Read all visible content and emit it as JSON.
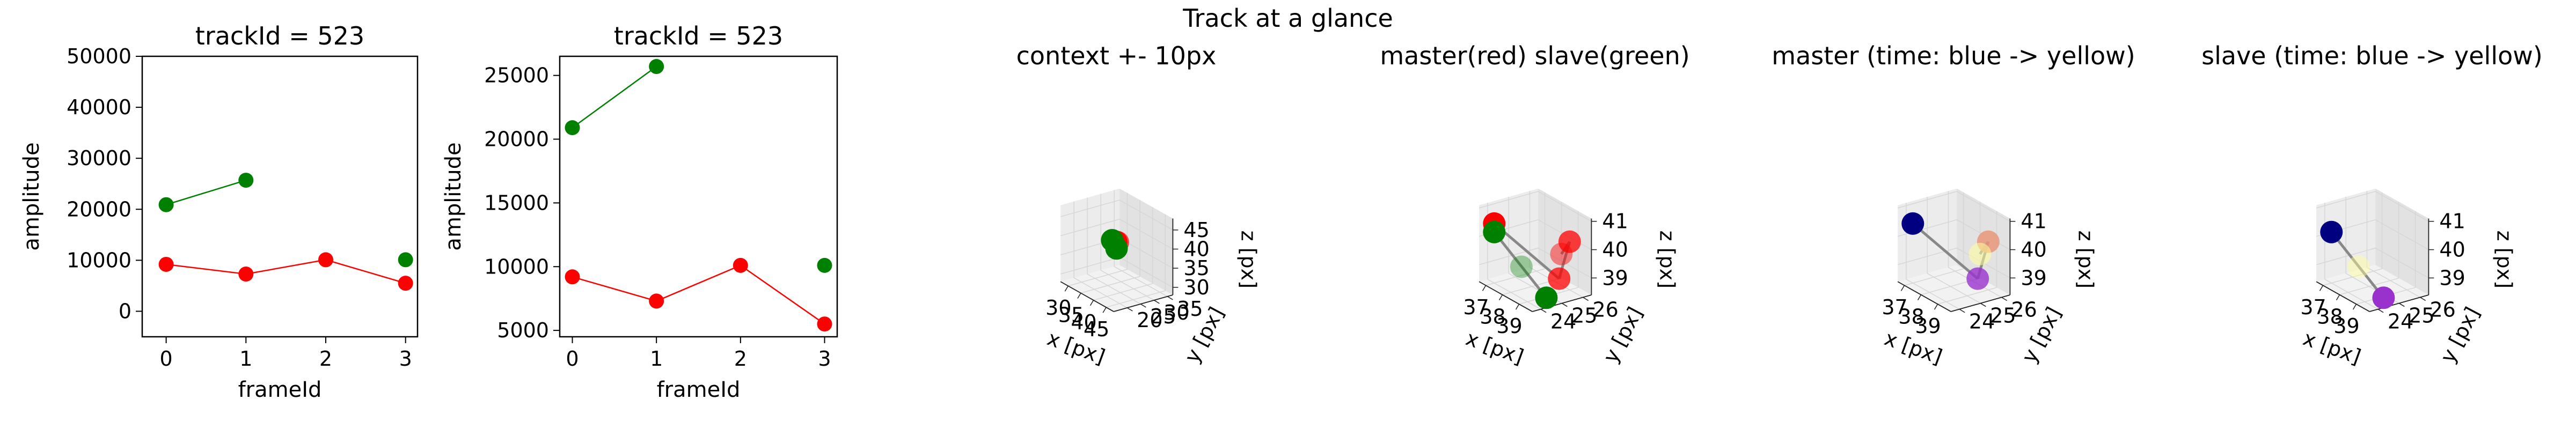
{
  "suptitle": "Track at a glance",
  "chart_data": [
    {
      "type": "line",
      "title": "trackId = 523",
      "xlabel": "frameId",
      "ylabel": "amplitude",
      "xlim": [
        -0.3,
        3.15
      ],
      "ylim": [
        -5000,
        50000
      ],
      "xticks": [
        "0",
        "1",
        "2",
        "3"
      ],
      "yticks": [
        "0",
        "10000",
        "20000",
        "30000",
        "40000",
        "50000"
      ],
      "ytick_values": [
        0,
        10000,
        20000,
        30000,
        40000,
        50000
      ],
      "series": [
        {
          "color": "#008000",
          "x": [
            0,
            1
          ],
          "y": [
            20900,
            25700
          ]
        },
        {
          "color": "#008000",
          "x": [
            3
          ],
          "y": [
            10100
          ]
        },
        {
          "color": "#ff0000",
          "x": [
            0,
            1,
            2,
            3
          ],
          "y": [
            9200,
            7300,
            10100,
            5500
          ]
        }
      ]
    },
    {
      "type": "line",
      "title": "trackId = 523",
      "xlabel": "frameId",
      "ylabel": "amplitude",
      "xlim": [
        -0.15,
        3.15
      ],
      "ylim": [
        4500,
        26500
      ],
      "xticks": [
        "0",
        "1",
        "2",
        "3"
      ],
      "yticks": [
        "5000",
        "10000",
        "15000",
        "20000",
        "25000"
      ],
      "ytick_values": [
        5000,
        10000,
        15000,
        20000,
        25000
      ],
      "series": [
        {
          "color": "#008000",
          "x": [
            0,
            1
          ],
          "y": [
            20900,
            25700
          ]
        },
        {
          "color": "#008000",
          "x": [
            3
          ],
          "y": [
            10100
          ]
        },
        {
          "color": "#ff0000",
          "x": [
            0,
            1,
            2,
            3
          ],
          "y": [
            9200,
            7300,
            10100,
            5500
          ]
        }
      ]
    },
    {
      "type": "scatter",
      "title": "context +- 10px",
      "xlabel": "x [px]",
      "ylabel": "y [px]",
      "zlabel": "z [px]",
      "xlim": [
        27,
        48
      ],
      "ylim": [
        15,
        37
      ],
      "zlim": [
        28,
        48
      ],
      "xticks": [
        "30",
        "35",
        "40",
        "45"
      ],
      "xtick_values": [
        30,
        35,
        40,
        45
      ],
      "yticks": [
        "20",
        "25",
        "30",
        "35"
      ],
      "ytick_values": [
        20,
        25,
        30,
        35
      ],
      "zticks": [
        "30",
        "35",
        "40",
        "45"
      ],
      "ztick_values": [
        30,
        35,
        40,
        45
      ],
      "points": [
        {
          "x": 38.5,
          "y": 25.5,
          "z": 40.5,
          "color": "#ff0000",
          "alpha": 0.7
        },
        {
          "x": 37.5,
          "y": 25.8,
          "z": 40.2,
          "color": "#ff0000",
          "alpha": 1
        },
        {
          "x": 37.3,
          "y": 24.5,
          "z": 40.8,
          "color": "#008000",
          "alpha": 1
        },
        {
          "x": 38.5,
          "y": 25.0,
          "z": 39.0,
          "color": "#008000",
          "alpha": 1
        }
      ],
      "lines": []
    },
    {
      "type": "scatter",
      "title": "master(red) slave(green)",
      "xlabel": "x [px]",
      "ylabel": "y [px]",
      "zlabel": "z [px]",
      "xlim": [
        36.6,
        39.8
      ],
      "ylim": [
        23.6,
        26.4
      ],
      "zlim": [
        38.4,
        41.1
      ],
      "xticks": [
        "37",
        "38",
        "39"
      ],
      "xtick_values": [
        37,
        38,
        39
      ],
      "yticks": [
        "24",
        "25",
        "26"
      ],
      "ytick_values": [
        24,
        25,
        26
      ],
      "zticks": [
        "39",
        "40",
        "41"
      ],
      "ztick_values": [
        39,
        40,
        41
      ],
      "points": [
        {
          "x": 37.0,
          "y": 24.0,
          "z": 40.5,
          "color": "#ff0000",
          "alpha": 1
        },
        {
          "x": 38.5,
          "y": 26.0,
          "z": 39.5,
          "color": "#ff0000",
          "alpha": 0.45
        },
        {
          "x": 39.0,
          "y": 25.5,
          "z": 38.9,
          "color": "#ff0000",
          "alpha": 0.75
        },
        {
          "x": 39.0,
          "y": 26.0,
          "z": 40.1,
          "color": "#ff0000",
          "alpha": 0.75
        },
        {
          "x": 37.0,
          "y": 24.0,
          "z": 40.2,
          "color": "#008000",
          "alpha": 1
        },
        {
          "x": 38.0,
          "y": 24.5,
          "z": 39.2,
          "color": "#008000",
          "alpha": 0.35
        },
        {
          "x": 39.5,
          "y": 24.5,
          "z": 38.6,
          "color": "#008000",
          "alpha": 1
        }
      ],
      "lines": [
        {
          "from": [
            37.0,
            24.0,
            40.5
          ],
          "to": [
            39.0,
            25.5,
            38.9
          ]
        },
        {
          "from": [
            39.0,
            25.5,
            38.9
          ],
          "to": [
            39.0,
            26.0,
            40.1
          ]
        },
        {
          "from": [
            38.5,
            26.0,
            39.5
          ],
          "to": [
            39.0,
            26.0,
            40.1
          ]
        },
        {
          "from": [
            37.0,
            24.0,
            40.2
          ],
          "to": [
            39.5,
            24.5,
            38.6
          ]
        }
      ]
    },
    {
      "type": "scatter",
      "title": "master (time: blue -> yellow)",
      "xlabel": "x [px]",
      "ylabel": "y [px]",
      "zlabel": "z [px]",
      "xlim": [
        36.6,
        39.8
      ],
      "ylim": [
        23.6,
        26.4
      ],
      "zlim": [
        38.4,
        41.1
      ],
      "xticks": [
        "37",
        "38",
        "39"
      ],
      "xtick_values": [
        37,
        38,
        39
      ],
      "yticks": [
        "24",
        "25",
        "26"
      ],
      "ytick_values": [
        24,
        25,
        26
      ],
      "zticks": [
        "39",
        "40",
        "41"
      ],
      "ztick_values": [
        39,
        40,
        41
      ],
      "points": [
        {
          "x": 37.0,
          "y": 24.0,
          "z": 40.5,
          "color": "#000080",
          "alpha": 1
        },
        {
          "x": 39.0,
          "y": 25.5,
          "z": 38.9,
          "color": "#9932cc",
          "alpha": 0.8
        },
        {
          "x": 39.0,
          "y": 26.0,
          "z": 40.1,
          "color": "#e9967a",
          "alpha": 0.85
        },
        {
          "x": 38.5,
          "y": 26.0,
          "z": 39.5,
          "color": "#ffff99",
          "alpha": 0.55
        }
      ],
      "lines": [
        {
          "from": [
            37.0,
            24.0,
            40.5
          ],
          "to": [
            39.0,
            25.5,
            38.9
          ]
        },
        {
          "from": [
            39.0,
            25.5,
            38.9
          ],
          "to": [
            39.0,
            26.0,
            40.1
          ]
        },
        {
          "from": [
            39.0,
            26.0,
            40.1
          ],
          "to": [
            38.5,
            26.0,
            39.5
          ]
        }
      ]
    },
    {
      "type": "scatter",
      "title": "slave (time: blue -> yellow)",
      "xlabel": "x [px]",
      "ylabel": "y [px]",
      "zlabel": "z [px]",
      "xlim": [
        36.6,
        39.8
      ],
      "ylim": [
        23.6,
        26.4
      ],
      "zlim": [
        38.4,
        41.1
      ],
      "xticks": [
        "37",
        "38",
        "39"
      ],
      "xtick_values": [
        37,
        38,
        39
      ],
      "yticks": [
        "24",
        "25",
        "26"
      ],
      "ytick_values": [
        24,
        25,
        26
      ],
      "zticks": [
        "39",
        "40",
        "41"
      ],
      "ztick_values": [
        39,
        40,
        41
      ],
      "points": [
        {
          "x": 37.0,
          "y": 24.0,
          "z": 40.2,
          "color": "#000080",
          "alpha": 1
        },
        {
          "x": 39.5,
          "y": 24.5,
          "z": 38.6,
          "color": "#9932cc",
          "alpha": 1
        },
        {
          "x": 38.0,
          "y": 24.5,
          "z": 39.2,
          "color": "#ffff99",
          "alpha": 0.45
        }
      ],
      "lines": [
        {
          "from": [
            37.0,
            24.0,
            40.2
          ],
          "to": [
            39.5,
            24.5,
            38.6
          ]
        }
      ]
    }
  ]
}
